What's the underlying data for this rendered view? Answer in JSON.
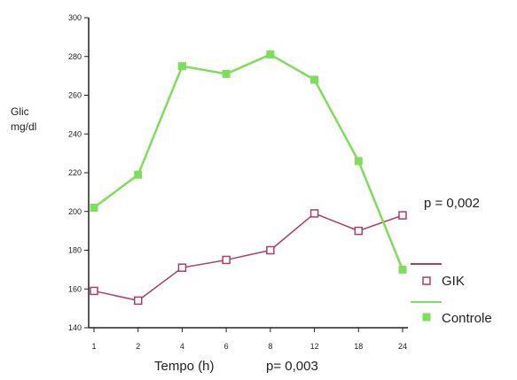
{
  "chart_data": {
    "type": "line",
    "title": "",
    "ylabel_line1": "Glic",
    "ylabel_line2": "mg/dl",
    "xlabel": "Tempo (h)",
    "x_pvalue": "p= 0,003",
    "series_pvalue": "p = 0,002",
    "categories": [
      "1",
      "2",
      "4",
      "6",
      "8",
      "12",
      "18",
      "24"
    ],
    "ylim": [
      140,
      300
    ],
    "yticks": [
      "140",
      "160",
      "180",
      "200",
      "220",
      "240",
      "260",
      "280",
      "300"
    ],
    "grid": false,
    "legend_position": "bottom-right",
    "series": [
      {
        "name": "GIK",
        "color": "#b03a6a",
        "marker": "open-square",
        "values": [
          159,
          154,
          171,
          175,
          180,
          199,
          190,
          198
        ]
      },
      {
        "name": "Controle",
        "color": "#7ddf57",
        "marker": "filled-square",
        "values": [
          202,
          219,
          275,
          271,
          281,
          268,
          226,
          170
        ]
      }
    ]
  }
}
